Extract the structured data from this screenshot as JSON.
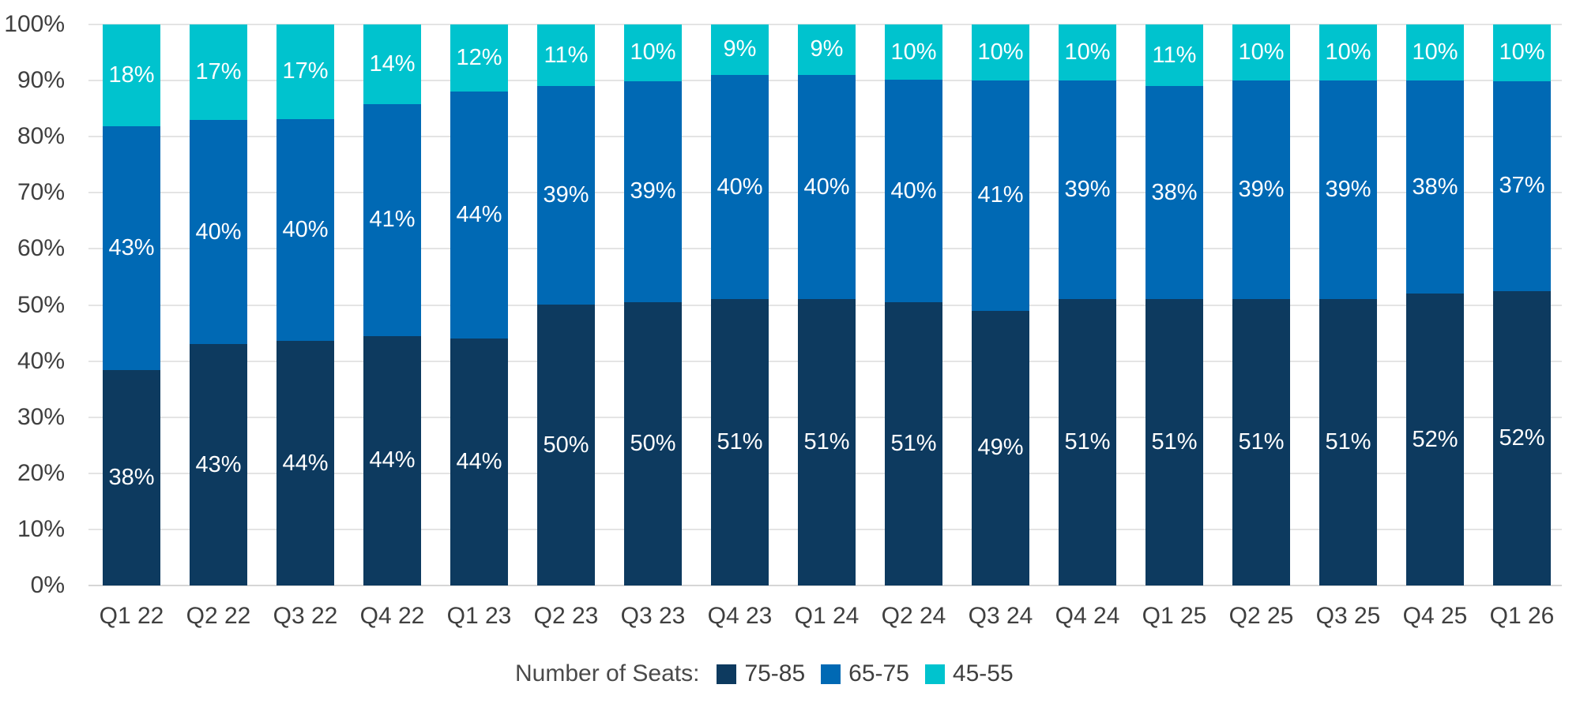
{
  "chart_data": {
    "type": "bar",
    "stacked": true,
    "title": "",
    "legend_title": "Number of Seats:",
    "legend_position": "bottom",
    "grid": true,
    "value_suffix": "%",
    "categories": [
      "Q1 22",
      "Q2 22",
      "Q3 22",
      "Q4 22",
      "Q1 23",
      "Q2 23",
      "Q3 23",
      "Q4 23",
      "Q1 24",
      "Q2 24",
      "Q3 24",
      "Q4 24",
      "Q1 25",
      "Q2 25",
      "Q3 25",
      "Q4 25",
      "Q1 26"
    ],
    "series": [
      {
        "name": "75-85",
        "color": "#0d3a5f",
        "values": [
          38,
          43,
          44,
          44,
          44,
          50,
          50,
          51,
          51,
          51,
          49,
          51,
          51,
          51,
          51,
          52,
          52
        ]
      },
      {
        "name": "65-75",
        "color": "#0069b4",
        "values": [
          43,
          40,
          40,
          41,
          44,
          39,
          39,
          40,
          40,
          40,
          41,
          39,
          38,
          39,
          39,
          38,
          37
        ]
      },
      {
        "name": "45-55",
        "color": "#00c3ce",
        "values": [
          18,
          17,
          17,
          14,
          12,
          11,
          10,
          9,
          9,
          10,
          10,
          10,
          11,
          10,
          10,
          10,
          10
        ]
      }
    ],
    "y_axis": {
      "min": 0,
      "max": 100,
      "tick_step": 10,
      "ticks": [
        "0%",
        "10%",
        "20%",
        "30%",
        "40%",
        "50%",
        "60%",
        "70%",
        "80%",
        "90%",
        "100%"
      ]
    }
  },
  "style": {
    "grid_color": "#e4e4e4",
    "axis_line_color": "#d6d6d6",
    "axis_text_color": "#3f3f3f",
    "bar_label_color": "#ffffff",
    "background": "#ffffff"
  }
}
